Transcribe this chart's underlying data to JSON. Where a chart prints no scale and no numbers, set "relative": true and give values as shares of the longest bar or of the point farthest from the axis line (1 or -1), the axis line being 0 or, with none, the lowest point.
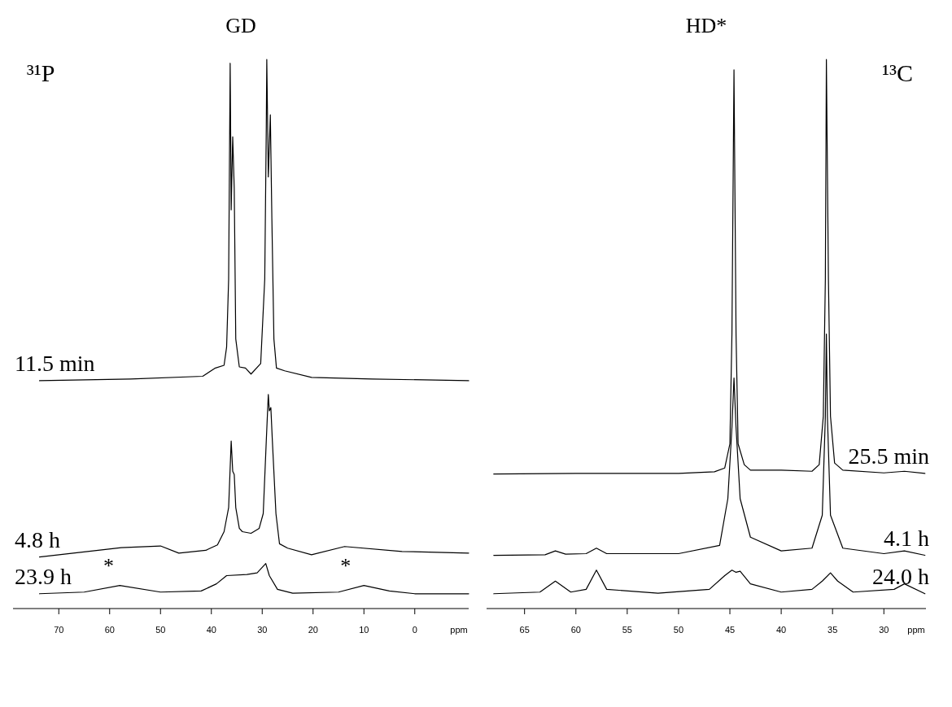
{
  "chart_data": [
    {
      "type": "line",
      "title": "GD",
      "xlabel": "ppm",
      "relative": true,
      "tick_labels": "x",
      "xlim": [
        79,
        -10.6
      ],
      "xticks": [
        70,
        60,
        50,
        40,
        30,
        20,
        10,
        0
      ],
      "annotations": [
        "³¹P",
        "*",
        "*"
      ],
      "series": [
        {
          "name": "11.5 min",
          "color": "#000000",
          "x": [
            73.8,
            55.9,
            41.7,
            39.2,
            37.5,
            37.0,
            36.6,
            36.3,
            36.1,
            35.8,
            35.5,
            35.2,
            34.5,
            33.3,
            32.2,
            30.3,
            29.5,
            29.2,
            29.1,
            28.8,
            28.4,
            28.1,
            27.7,
            27.2,
            25.6,
            20.3,
            8.4,
            -10.6
          ],
          "values": [
            0.415,
            0.418,
            0.423,
            0.438,
            0.443,
            0.476,
            0.6,
            0.993,
            0.726,
            0.859,
            0.765,
            0.491,
            0.44,
            0.438,
            0.427,
            0.446,
            0.6,
            0.875,
            1,
            0.786,
            0.899,
            0.71,
            0.491,
            0.438,
            0.433,
            0.421,
            0.418,
            0.415
          ]
        },
        {
          "name": "4.8 h",
          "color": "#000000",
          "x": [
            73.8,
            57.7,
            50.0,
            46.4,
            41.1,
            38.8,
            37.5,
            36.6,
            36.1,
            35.8,
            35.5,
            35.2,
            34.5,
            33.9,
            32.2,
            30.6,
            29.8,
            29.2,
            28.8,
            28.6,
            28.3,
            28.0,
            27.3,
            26.6,
            25.0,
            20.3,
            13.8,
            2.5,
            -10.6
          ],
          "values": [
            0.094,
            0.111,
            0.114,
            0.101,
            0.106,
            0.116,
            0.14,
            0.184,
            0.305,
            0.25,
            0.244,
            0.184,
            0.146,
            0.14,
            0.137,
            0.146,
            0.173,
            0.305,
            0.39,
            0.36,
            0.366,
            0.305,
            0.173,
            0.118,
            0.11,
            0.098,
            0.113,
            0.104,
            0.101
          ]
        },
        {
          "name": "23.9 h",
          "color": "#000000",
          "x": [
            73.8,
            65,
            58,
            50,
            42,
            39,
            37,
            33,
            31,
            30,
            29.3,
            28.6,
            27,
            24,
            15,
            10,
            5,
            0,
            -10.6
          ],
          "values": [
            0.027,
            0.03,
            0.042,
            0.03,
            0.032,
            0.045,
            0.06,
            0.062,
            0.065,
            0.075,
            0.082,
            0.06,
            0.035,
            0.028,
            0.03,
            0.042,
            0.032,
            0.027,
            0.027
          ]
        }
      ]
    },
    {
      "type": "line",
      "title": "HD*",
      "xlabel": "ppm",
      "relative": true,
      "tick_labels": "x",
      "xlim": [
        68.7,
        25.9
      ],
      "xticks": [
        65,
        60,
        55,
        50,
        45,
        40,
        35,
        30
      ],
      "annotations": [
        "¹³C"
      ],
      "series": [
        {
          "name": "25.5 min",
          "color": "#000000",
          "x": [
            68,
            60,
            50,
            46.5,
            45.5,
            45.0,
            44.8,
            44.6,
            44.4,
            44.2,
            43.6,
            43,
            40,
            37,
            36.3,
            35.9,
            35.7,
            35.6,
            35.4,
            35.2,
            34.8,
            34,
            30,
            28,
            26
          ],
          "values": [
            0.245,
            0.246,
            0.246,
            0.249,
            0.256,
            0.3,
            0.5,
            0.981,
            0.5,
            0.3,
            0.262,
            0.252,
            0.252,
            0.25,
            0.262,
            0.35,
            0.6,
            1,
            0.6,
            0.35,
            0.265,
            0.252,
            0.247,
            0.25,
            0.246
          ]
        },
        {
          "name": "4.1 h",
          "color": "#000000",
          "x": [
            68,
            63,
            62,
            61,
            59,
            58,
            57,
            50,
            46,
            45.2,
            44.8,
            44.6,
            44.4,
            44,
            43,
            40,
            37,
            36,
            35.7,
            35.6,
            35.5,
            35.2,
            34,
            30,
            28,
            26
          ],
          "values": [
            0.097,
            0.098,
            0.105,
            0.099,
            0.1,
            0.11,
            0.1,
            0.1,
            0.115,
            0.2,
            0.33,
            0.42,
            0.33,
            0.2,
            0.13,
            0.105,
            0.11,
            0.17,
            0.35,
            0.5,
            0.35,
            0.17,
            0.11,
            0.1,
            0.105,
            0.097
          ]
        },
        {
          "name": "24.0 h",
          "color": "#000000",
          "x": [
            68,
            63.5,
            62,
            60.5,
            59,
            58,
            57,
            52,
            47,
            45.5,
            44.8,
            44.4,
            44,
            43,
            40,
            37,
            36,
            35.2,
            34.5,
            33,
            29,
            28,
            26
          ],
          "values": [
            0.027,
            0.03,
            0.05,
            0.03,
            0.035,
            0.07,
            0.035,
            0.028,
            0.035,
            0.06,
            0.07,
            0.066,
            0.068,
            0.045,
            0.03,
            0.035,
            0.05,
            0.065,
            0.05,
            0.03,
            0.035,
            0.045,
            0.027
          ]
        }
      ]
    }
  ]
}
